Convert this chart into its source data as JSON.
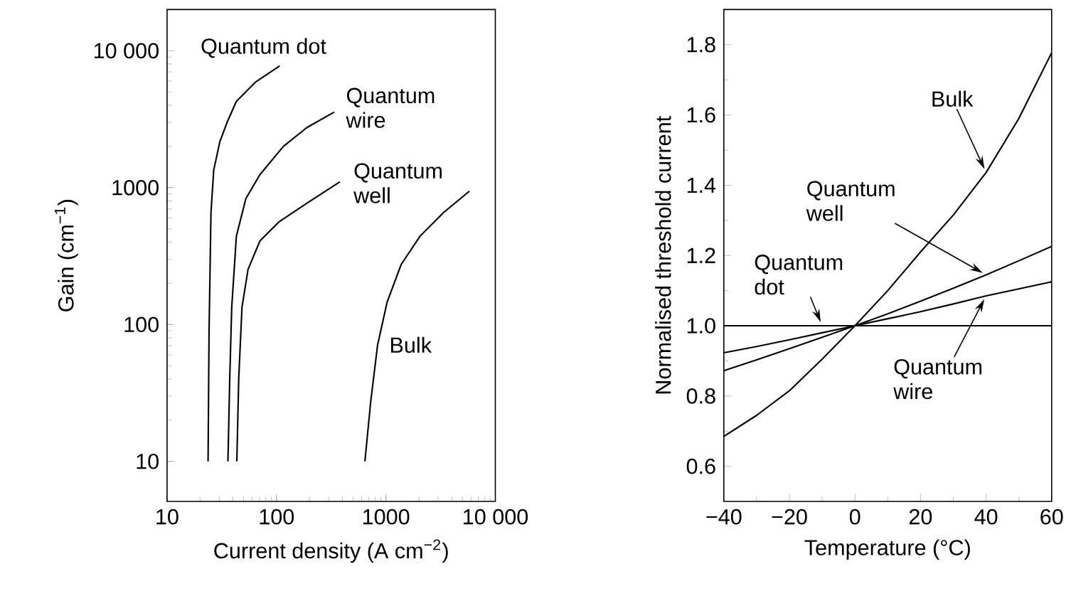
{
  "chart_data": [
    {
      "type": "line",
      "log": "xy",
      "xlabel": "Current density (A cm$^{−2}$)",
      "ylabel": "Gain (cm$^{−1}$)",
      "xlim": [
        10,
        10000
      ],
      "ylim": [
        5.1,
        20000
      ],
      "xticks": [
        10,
        100,
        1000,
        {
          "value": 10000,
          "label": "10 000"
        }
      ],
      "yticks": [
        10,
        100,
        1000,
        {
          "value": 10000,
          "label": "10 000"
        }
      ],
      "series": [
        {
          "name": "Quantum dot",
          "color": "#000000",
          "x": [
            23.7,
            24.2,
            25.2,
            26.7,
            30.4,
            35.3,
            43,
            64,
            107
          ],
          "values": [
            10,
            90,
            658,
            1346,
            2170,
            2990,
            4270,
            5880,
            7760
          ]
        },
        {
          "name": "Quantum wire",
          "color": "#000000",
          "x": [
            36,
            37.4,
            39,
            43,
            52.5,
            70.6,
            116,
            190,
            337
          ],
          "values": [
            10,
            40.6,
            134,
            442,
            832,
            1245,
            2005,
            2750,
            3560
          ]
        },
        {
          "name": "Quantum well",
          "color": "#000000",
          "x": [
            43.4,
            45.2,
            48.4,
            55,
            70.6,
            105,
            190,
            380
          ],
          "values": [
            10,
            40.6,
            134,
            253,
            408,
            561,
            771,
            1104
          ]
        },
        {
          "name": "Bulk",
          "color": "#000000",
          "x": [
            643,
            725,
            840,
            1024,
            1377,
            2050,
            3370,
            5800
          ],
          "values": [
            10,
            27,
            71,
            145,
            274,
            442,
            658,
            942
          ]
        }
      ]
    },
    {
      "type": "line",
      "xlabel": "Temperature (°C)",
      "ylabel": "Normalised threshold current",
      "xlim": [
        -40,
        60
      ],
      "ylim": [
        0.5,
        1.9
      ],
      "x": [
        -40,
        -30,
        -20,
        -10,
        0,
        10,
        20,
        30,
        40,
        50,
        60
      ],
      "xticks": [
        {
          "value": -40,
          "label": "−40"
        },
        {
          "value": -20,
          "label": "−20"
        },
        0,
        20,
        40,
        60
      ],
      "yticks": [
        {
          "value": 0.6,
          "label": "0.6"
        },
        {
          "value": 0.8,
          "label": "0.8"
        },
        {
          "value": 1,
          "label": "1.0"
        },
        {
          "value": 1.2,
          "label": "1.2"
        },
        {
          "value": 1.4,
          "label": "1.4"
        },
        {
          "value": 1.6,
          "label": "1.6"
        },
        {
          "value": 1.8,
          "label": "1.8"
        }
      ],
      "series": [
        {
          "name": "Quantum dot",
          "color": "#000000",
          "values": [
            1,
            1,
            1,
            1,
            1,
            1,
            1,
            1,
            1,
            1,
            1
          ]
        },
        {
          "name": "Quantum wire",
          "color": "#000000",
          "values": [
            0.923,
            0.941,
            0.96,
            0.98,
            1,
            1.02,
            1.04,
            1.062,
            1.085,
            1.105,
            1.125
          ]
        },
        {
          "name": "Quantum well",
          "color": "#000000",
          "values": [
            0.872,
            0.903,
            0.935,
            0.967,
            1,
            1.034,
            1.07,
            1.107,
            1.145,
            1.185,
            1.226
          ]
        },
        {
          "name": "Bulk",
          "color": "#000000",
          "values": [
            0.685,
            0.745,
            0.815,
            0.905,
            1,
            1.1,
            1.21,
            1.315,
            1.436,
            1.59,
            1.777
          ]
        }
      ]
    }
  ]
}
